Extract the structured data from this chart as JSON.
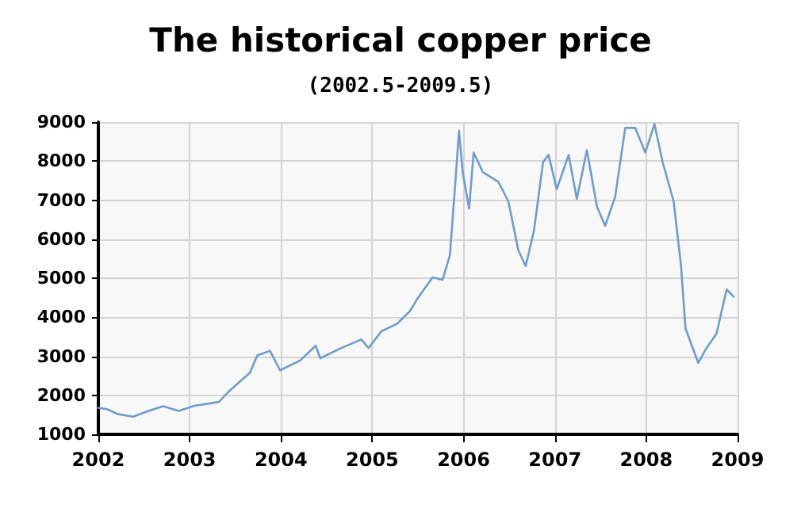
{
  "chart_data": {
    "type": "line",
    "title": "The historical copper price",
    "subtitle": "(2002.5-2009.5)",
    "x": [
      2002.0,
      2002.1,
      2002.21,
      2002.38,
      2002.55,
      2002.71,
      2002.88,
      2003.05,
      2003.32,
      2003.43,
      2003.66,
      2003.74,
      2003.88,
      2003.99,
      2004.21,
      2004.38,
      2004.43,
      2004.66,
      2004.88,
      2004.96,
      2005.1,
      2005.27,
      2005.41,
      2005.49,
      2005.66,
      2005.77,
      2005.85,
      2005.91,
      2005.95,
      2005.99,
      2006.06,
      2006.11,
      2006.21,
      2006.38,
      2006.49,
      2006.6,
      2006.68,
      2006.77,
      2006.87,
      2006.93,
      2007.02,
      2007.15,
      2007.24,
      2007.35,
      2007.46,
      2007.55,
      2007.66,
      2007.77,
      2007.88,
      2007.99,
      2008.09,
      2008.18,
      2008.3,
      2008.38,
      2008.43,
      2008.57,
      2008.66,
      2008.77,
      2008.88,
      2008.96
    ],
    "series": [
      {
        "color": "#6f9ccb",
        "values": [
          1680,
          1640,
          1520,
          1450,
          1600,
          1720,
          1600,
          1730,
          1830,
          2100,
          2580,
          3020,
          3140,
          2640,
          2890,
          3270,
          2950,
          3210,
          3430,
          3210,
          3640,
          3830,
          4150,
          4460,
          5020,
          4960,
          5590,
          7470,
          8780,
          7720,
          6780,
          8220,
          7720,
          7470,
          6970,
          5710,
          5310,
          6210,
          7970,
          8160,
          7280,
          8160,
          7030,
          8280,
          6840,
          6340,
          7090,
          8850,
          8850,
          8220,
          8950,
          7970,
          6970,
          5340,
          3710,
          2830,
          3210,
          3580,
          4710,
          4520
        ]
      }
    ],
    "xlim": [
      2002,
      2009
    ],
    "xticks": [
      2002,
      2003,
      2004,
      2005,
      2006,
      2007,
      2008,
      2009
    ],
    "ylim": [
      1000,
      9000
    ],
    "yticks": [
      1000,
      2000,
      3000,
      4000,
      5000,
      6000,
      7000,
      8000,
      9000
    ],
    "grid": true,
    "marker": "none",
    "line_style": "solid"
  }
}
